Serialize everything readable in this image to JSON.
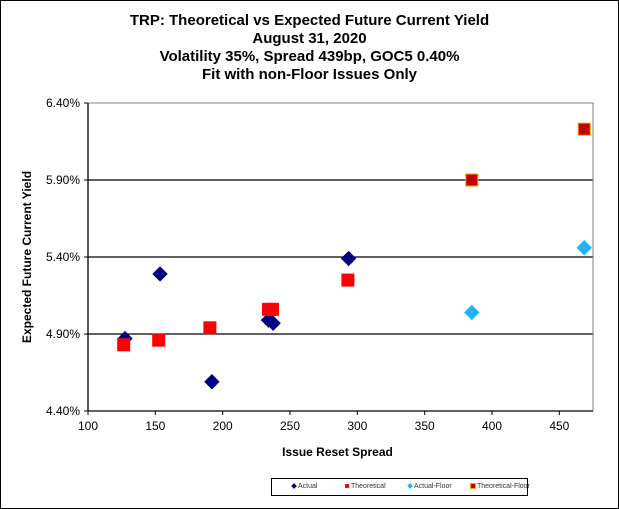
{
  "chart_data": {
    "type": "scatter",
    "title": "TRP: Theoretical vs Expected Future Current Yield",
    "subtitle_lines": [
      "August 31, 2020",
      "Volatility 35%, Spread 439bp, GOC5 0.40%",
      "Fit with non-Floor Issues Only"
    ],
    "xlabel": "Issue Reset Spread",
    "ylabel": "Expected Future Current Yield",
    "xlim": [
      100,
      475
    ],
    "ylim": [
      4.4,
      6.4
    ],
    "x_ticks": [
      "100",
      "150",
      "200",
      "250",
      "300",
      "350",
      "400",
      "450"
    ],
    "x_tick_values": [
      100,
      150,
      200,
      250,
      300,
      350,
      400,
      450
    ],
    "y_ticks": [
      "4.40%",
      "4.90%",
      "5.40%",
      "5.90%",
      "6.40%"
    ],
    "y_tick_values": [
      4.4,
      4.9,
      5.4,
      5.9,
      6.4
    ],
    "grid": "horizontal",
    "legend_position": "bottom",
    "series": [
      {
        "name": "Actual",
        "marker": "diamond",
        "color": "#000080",
        "border": "#000080",
        "points": [
          [
            127.5,
            4.87
          ],
          [
            153.5,
            5.29
          ],
          [
            192,
            4.59
          ],
          [
            234,
            4.99
          ],
          [
            237.5,
            4.97
          ],
          [
            293.5,
            5.39
          ]
        ]
      },
      {
        "name": "Theoretical",
        "marker": "square",
        "color": "#FF0000",
        "border": "#FF0000",
        "points": [
          [
            126.5,
            4.83
          ],
          [
            152.5,
            4.86
          ],
          [
            190.5,
            4.94
          ],
          [
            234,
            5.06
          ],
          [
            237,
            5.06
          ],
          [
            293,
            5.25
          ]
        ]
      },
      {
        "name": "Actual-Floor",
        "marker": "diamond",
        "color": "#1EB4F0",
        "border": "#1EB4F0",
        "points": [
          [
            385,
            5.04
          ],
          [
            468.5,
            5.46
          ]
        ]
      },
      {
        "name": "Theoretical-Floor",
        "marker": "square",
        "color": "#C00000",
        "border": "#FFA000",
        "points": [
          [
            385,
            5.9
          ],
          [
            468.5,
            6.23
          ]
        ]
      }
    ]
  }
}
